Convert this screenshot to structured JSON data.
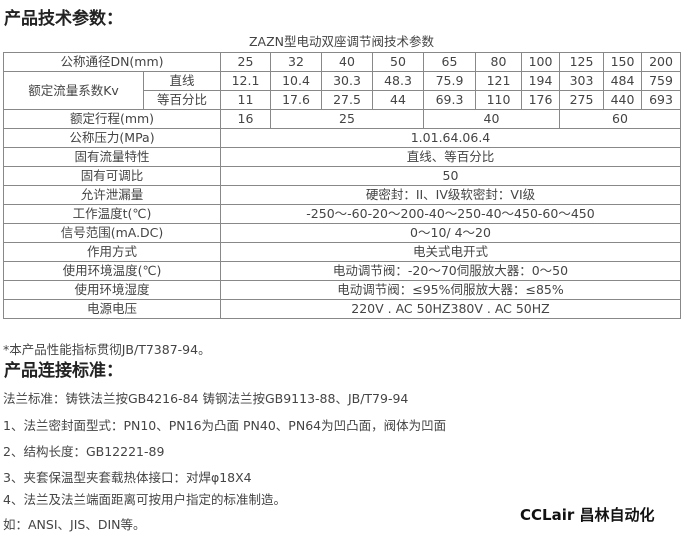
{
  "heading1": "产品技术参数：",
  "table_caption": "ZAZN型电动双座调节阀技术参数",
  "table": {
    "dn_label": "公称通径DN(mm)",
    "dn": [
      "25",
      "32",
      "40",
      "50",
      "65",
      "80",
      "100",
      "125",
      "150",
      "200"
    ],
    "kv_label": "额定流量系数Kv",
    "kv_linear_label": "直线",
    "kv_linear": [
      "12.1",
      "10.4",
      "30.3",
      "48.3",
      "75.9",
      "121",
      "194",
      "303",
      "484",
      "759"
    ],
    "kv_eq_label": "等百分比",
    "kv_eq": [
      "11",
      "17.6",
      "27.5",
      "44",
      "69.3",
      "110",
      "176",
      "275",
      "440",
      "693"
    ],
    "stroke_label": "额定行程(mm)",
    "stroke": [
      "16",
      "25",
      "40",
      "60"
    ],
    "rows": [
      {
        "label": "公称压力(MPa)",
        "value": "1.01.64.06.4"
      },
      {
        "label": "固有流量特性",
        "value": "直线、等百分比"
      },
      {
        "label": "固有可调比",
        "value": "50"
      },
      {
        "label": "允许泄漏量",
        "value": "硬密封：II、IV级软密封：VI级"
      },
      {
        "label": "工作温度t(℃)",
        "value": "-250～-60-20～200-40～250-40～450-60～450"
      },
      {
        "label": "信号范围(mA.DC)",
        "value": "0～10/ 4～20"
      },
      {
        "label": "作用方式",
        "value": "电关式电开式"
      },
      {
        "label": "使用环境温度(℃)",
        "value": "电动调节阀：-20～70伺服放大器：0～50"
      },
      {
        "label": "使用环境湿度",
        "value": "电动调节阀：≤95%伺服放大器：≤85%"
      },
      {
        "label": "电源电压",
        "value": "220V . AC 50HZ380V . AC 50HZ"
      }
    ]
  },
  "note": "*本产品性能指标贯彻JB/T7387-94。",
  "heading2": "产品连接标准：",
  "lines": [
    "法兰标准：铸铁法兰按GB4216-84 铸钢法兰按GB9113-88、JB/T79-94",
    "1、法兰密封面型式：PN10、PN16为凸面 PN40、PN64为凹凸面，阀体为凹面",
    "2、结构长度：GB12221-89",
    "3、夹套保温型夹套载热体接口：对焊φ18X4",
    "4、法兰及法兰端面距离可按用户指定的标准制造。",
    "如：ANSI、JIS、DIN等。"
  ],
  "watermark": "CCLair 昌林自动化"
}
